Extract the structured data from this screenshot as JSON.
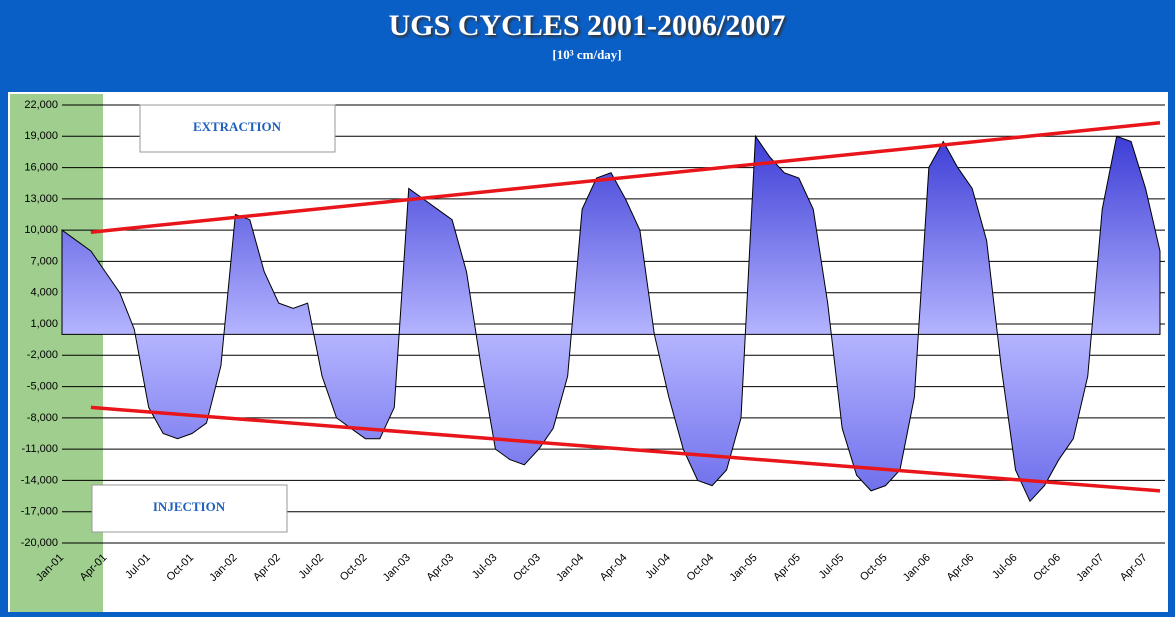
{
  "chart_data": {
    "type": "area",
    "title": "UGS CYCLES 2001-2006/2007",
    "subtitle": "[10³ cm/day]",
    "annotations": [
      "EXTRACTION",
      "INJECTION"
    ],
    "categories": [
      "Jan-01",
      null,
      null,
      "Apr-01",
      null,
      null,
      "Jul-01",
      null,
      null,
      "Oct-01",
      null,
      null,
      "Jan-02",
      null,
      null,
      "Apr-02",
      null,
      null,
      "Jul-02",
      null,
      null,
      "Oct-02",
      null,
      null,
      "Jan-03",
      null,
      null,
      "Apr-03",
      null,
      null,
      "Jul-03",
      null,
      null,
      "Oct-03",
      null,
      null,
      "Jan-04",
      null,
      null,
      "Apr-04",
      null,
      null,
      "Jul-04",
      null,
      null,
      "Oct-04",
      null,
      null,
      "Jan-05",
      null,
      null,
      "Apr-05",
      null,
      null,
      "Jul-05",
      null,
      null,
      "Oct-05",
      null,
      null,
      "Jan-06",
      null,
      null,
      "Apr-06",
      null,
      null,
      "Jul-06",
      null,
      null,
      "Oct-06",
      null,
      null,
      "Jan-07",
      null,
      null,
      "Apr-07",
      null
    ],
    "values": [
      10000,
      9000,
      8000,
      6000,
      4000,
      500,
      -7000,
      -9500,
      -10000,
      -9500,
      -8500,
      -3000,
      11500,
      11000,
      6000,
      3000,
      2500,
      3000,
      -4000,
      -8000,
      -9000,
      -10000,
      -10000,
      -7000,
      14000,
      13000,
      12000,
      11000,
      6000,
      -3000,
      -11000,
      -12000,
      -12500,
      -11000,
      -9000,
      -4000,
      12000,
      15000,
      15500,
      13000,
      10000,
      0,
      -6000,
      -11000,
      -14000,
      -14500,
      -13000,
      -8000,
      19000,
      17000,
      15500,
      15000,
      12000,
      3000,
      -9000,
      -13500,
      -15000,
      -14500,
      -13000,
      -6000,
      16000,
      18500,
      16000,
      14000,
      9000,
      -3000,
      -13000,
      -16000,
      -14500,
      -12000,
      -10000,
      -4000,
      12000,
      19000,
      18500,
      14000,
      8000
    ],
    "color": "#2a2ad0",
    "trend_lines": [
      {
        "color": "#e8161b",
        "x": [
          2,
          76
        ],
        "values": [
          9800,
          20300
        ]
      },
      {
        "color": "#e8161b",
        "x": [
          2,
          76
        ],
        "values": [
          -7000,
          -15000
        ]
      }
    ],
    "ylim": [
      -20000,
      22000
    ],
    "yticks": [
      {
        "value": -20000,
        "label": "-20,000"
      },
      {
        "value": -17000,
        "label": "-17,000"
      },
      {
        "value": -14000,
        "label": "-14,000"
      },
      {
        "value": -11000,
        "label": "-11,000"
      },
      {
        "value": -8000,
        "label": "-8,000"
      },
      {
        "value": -5000,
        "label": "-5,000"
      },
      {
        "value": -2000,
        "label": "-2,000"
      },
      {
        "value": 1000,
        "label": "1,000"
      },
      {
        "value": 4000,
        "label": "4,000"
      },
      {
        "value": 7000,
        "label": "7,000"
      },
      {
        "value": 10000,
        "label": "10,000"
      },
      {
        "value": 13000,
        "label": "13,000"
      },
      {
        "value": 16000,
        "label": "16,000"
      },
      {
        "value": 19000,
        "label": "19,000"
      },
      {
        "value": 22000,
        "label": "22,000"
      }
    ],
    "grid": true
  }
}
